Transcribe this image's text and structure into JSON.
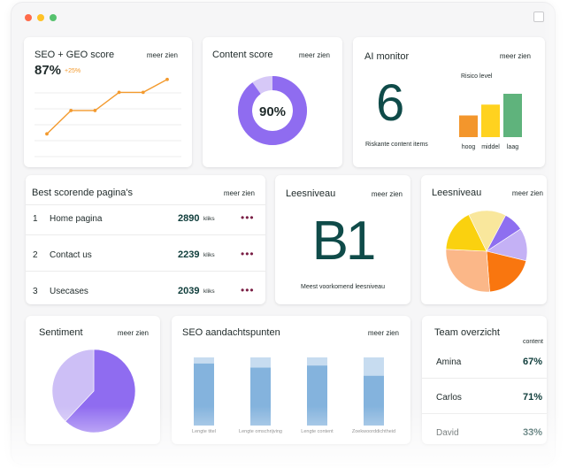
{
  "window": {
    "controls": [
      "close",
      "minimize",
      "maximize"
    ]
  },
  "seo_geo": {
    "title": "SEO + GEO score",
    "more": "meer zien",
    "score": "87%",
    "delta": "+25%",
    "chart_data": {
      "type": "line",
      "values": [
        10,
        28,
        28,
        42,
        42,
        52
      ],
      "color": "#f39a2e"
    }
  },
  "content_score": {
    "title": "Content score",
    "more": "meer zien",
    "value_label": "90%",
    "chart_data": {
      "type": "pie",
      "values": [
        90,
        10
      ],
      "colors": [
        "#8f6cf0",
        "#d6c8f7"
      ]
    }
  },
  "ai_monitor": {
    "title": "AI monitor",
    "more": "meer zien",
    "big_number": "6",
    "big_caption": "Riskante content items",
    "risk_title": "Risico level",
    "chart_data": {
      "type": "bar",
      "categories": [
        "hoog",
        "middel",
        "laag"
      ],
      "values": [
        2,
        3,
        4
      ],
      "colors": [
        "#f3962c",
        "#ffd21f",
        "#5fb37c"
      ]
    }
  },
  "best_pages": {
    "title": "Best scorende pagina's",
    "more": "meer zien",
    "unit": "kliks",
    "rows": [
      {
        "rank": "1",
        "name": "Home pagina",
        "clicks": "2890"
      },
      {
        "rank": "2",
        "name": "Contact us",
        "clicks": "2239"
      },
      {
        "rank": "3",
        "name": "Usecases",
        "clicks": "2039"
      }
    ]
  },
  "reading_level": {
    "title": "Leesniveau",
    "more": "meer zien",
    "big": "B1",
    "caption": "Meest voorkomend leesniveau"
  },
  "reading_pie": {
    "title": "Leesniveau",
    "more": "meer zien",
    "chart_data": {
      "type": "pie",
      "values": [
        8,
        13,
        20,
        27,
        17,
        15
      ],
      "colors": [
        "#8e6ff0",
        "#c4b1f5",
        "#f9760f",
        "#fbb788",
        "#fad10f",
        "#f9e79c"
      ]
    }
  },
  "sentiment": {
    "title": "Sentiment",
    "more": "meer zien",
    "chart_data": {
      "type": "pie",
      "values": [
        62,
        38
      ],
      "colors": [
        "#8f6cf0",
        "#cdbff6"
      ]
    }
  },
  "seo_points": {
    "title": "SEO aandachtspunten",
    "more": "meer zien",
    "chart_data": {
      "type": "bar",
      "categories": [
        "Lengte titel",
        "Lengte omschrijving",
        "Lengte content",
        "Zoekwoorddichtheid"
      ],
      "values": [
        91,
        85,
        88,
        73
      ],
      "ylim": [
        0,
        100
      ],
      "colors": [
        "#84b3dd",
        "#c7dcf0"
      ]
    }
  },
  "team": {
    "title": "Team overzicht",
    "column": "content",
    "rows": [
      {
        "name": "Amina",
        "value": "67%"
      },
      {
        "name": "Carlos",
        "value": "71%"
      },
      {
        "name": "David",
        "value": "33%"
      }
    ]
  }
}
